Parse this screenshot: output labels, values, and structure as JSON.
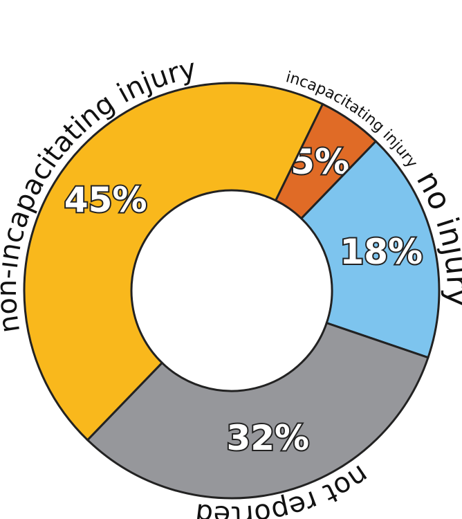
{
  "chart_data": {
    "type": "donut",
    "categories": [
      "incapacitating injury",
      "no injury",
      "not reported",
      "non-incapacitating injury"
    ],
    "values": [
      5,
      18,
      32,
      45
    ],
    "value_labels": [
      "5%",
      "18%",
      "32%",
      "45%"
    ],
    "colors": [
      "#e06b26",
      "#7dc4ee",
      "#96979b",
      "#f9b81c"
    ]
  }
}
